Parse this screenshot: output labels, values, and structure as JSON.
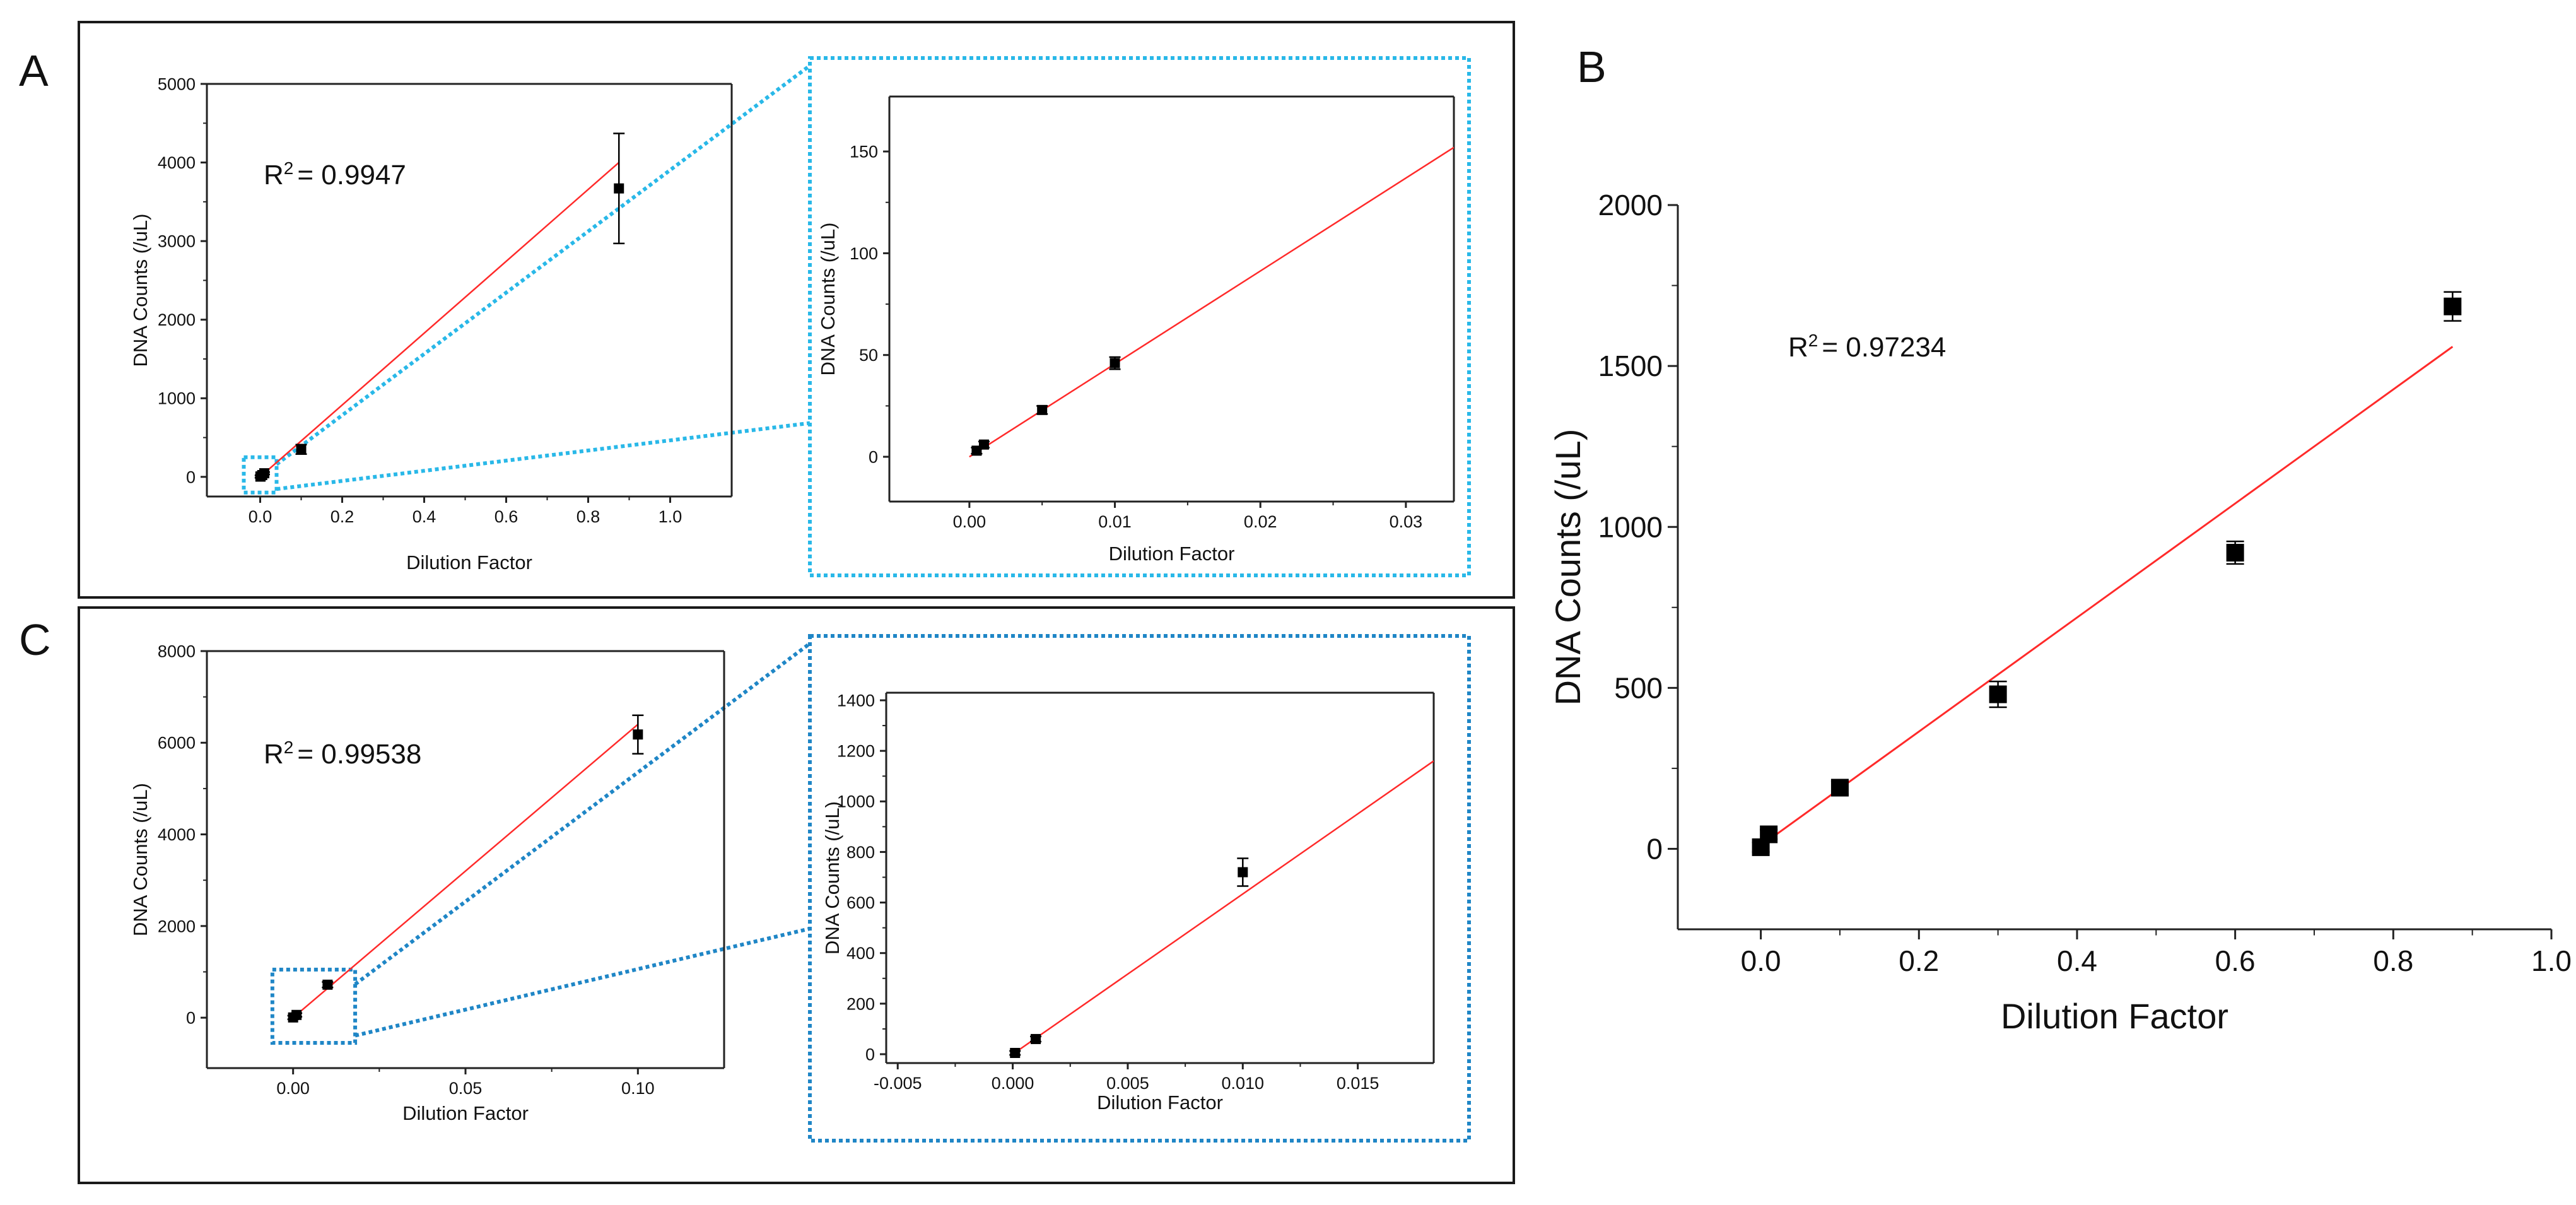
{
  "figure": {
    "panel_labels": {
      "A": "A",
      "B": "B",
      "C": "C"
    }
  },
  "colors": {
    "fit_line": "#ff2a2a",
    "marker": "#000000",
    "zoom_A": "#29b8e8",
    "zoom_C": "#1f86c6",
    "axis": "#222222",
    "frame": "#1a1a1a"
  },
  "chart_data": [
    {
      "id": "A_main",
      "panel": "A",
      "type": "scatter",
      "xlabel": "Dilution Factor",
      "ylabel": "DNA Counts (/uL)",
      "r2_label": "R",
      "r2_exp": "2",
      "r2_value": "= 0.9947",
      "xlim": [
        -0.13,
        1.15
      ],
      "ylim": [
        -250,
        5000
      ],
      "xticks": [
        0.0,
        0.2,
        0.4,
        0.6,
        0.8,
        1.0
      ],
      "xticklabels": [
        "0.0",
        "0.2",
        "0.4",
        "0.6",
        "0.8",
        "1.0"
      ],
      "yticks": [
        0,
        1000,
        2000,
        3000,
        4000,
        5000
      ],
      "yticklabels": [
        "0",
        "1000",
        "2000",
        "3000",
        "4000",
        "5000"
      ],
      "points": [
        {
          "x": 0.0005,
          "y": 3,
          "err": 15
        },
        {
          "x": 0.001,
          "y": 6,
          "err": 15
        },
        {
          "x": 0.005,
          "y": 23,
          "err": 15
        },
        {
          "x": 0.01,
          "y": 46,
          "err": 15
        },
        {
          "x": 0.1,
          "y": 350,
          "err": 60
        },
        {
          "x": 0.875,
          "y": 3670,
          "err": 700
        }
      ],
      "fit": {
        "x": [
          0.0,
          0.875
        ],
        "y": [
          0,
          4000
        ]
      },
      "zoom_box": {
        "x": [
          -0.04,
          0.04
        ],
        "y": [
          -200,
          250
        ]
      }
    },
    {
      "id": "A_inset",
      "panel": "A",
      "type": "scatter",
      "xlabel": "Dilution Factor",
      "ylabel": "DNA Counts (/uL)",
      "xlim": [
        -0.0055,
        0.0333
      ],
      "ylim": [
        -22,
        177
      ],
      "xticks": [
        0.0,
        0.01,
        0.02,
        0.03
      ],
      "xticklabels": [
        "0.00",
        "0.01",
        "0.02",
        "0.03"
      ],
      "yticks": [
        0,
        50,
        100,
        150
      ],
      "yticklabels": [
        "0",
        "50",
        "100",
        "150"
      ],
      "points": [
        {
          "x": 0.0005,
          "y": 3,
          "err": 1.5
        },
        {
          "x": 0.001,
          "y": 6,
          "err": 1.5
        },
        {
          "x": 0.005,
          "y": 23,
          "err": 2
        },
        {
          "x": 0.01,
          "y": 46,
          "err": 3
        }
      ],
      "fit": {
        "x": [
          0.0,
          0.0333
        ],
        "y": [
          0,
          152
        ]
      }
    },
    {
      "id": "B_main",
      "panel": "B",
      "type": "scatter",
      "xlabel": "Dilution Factor",
      "ylabel": "DNA Counts (/uL)",
      "r2_label": "R",
      "r2_exp": "2",
      "r2_value": "= 0.97234",
      "xlim": [
        -0.105,
        1.0
      ],
      "ylim": [
        -250,
        2000
      ],
      "xticks": [
        0.0,
        0.2,
        0.4,
        0.6,
        0.8,
        1.0
      ],
      "xticklabels": [
        "0.0",
        "0.2",
        "0.4",
        "0.6",
        "0.8",
        "1.0"
      ],
      "yticks": [
        0,
        500,
        1000,
        1500,
        2000
      ],
      "yticklabels": [
        "0",
        "500",
        "1000",
        "1500",
        "2000"
      ],
      "points": [
        {
          "x": 0.0,
          "y": 5,
          "err": 15
        },
        {
          "x": 0.01,
          "y": 45,
          "err": 15
        },
        {
          "x": 0.1,
          "y": 190,
          "err": 20
        },
        {
          "x": 0.3,
          "y": 480,
          "err": 40
        },
        {
          "x": 0.6,
          "y": 920,
          "err": 35
        },
        {
          "x": 0.875,
          "y": 1685,
          "err": 45
        }
      ],
      "fit": {
        "x": [
          0.0,
          0.875
        ],
        "y": [
          10,
          1560
        ]
      }
    },
    {
      "id": "C_main",
      "panel": "C",
      "type": "scatter",
      "xlabel": "Dilution Factor",
      "ylabel": "DNA Counts (/uL)",
      "r2_label": "R",
      "r2_exp": "2",
      "r2_value": "= 0.99538",
      "xlim": [
        -0.025,
        0.125
      ],
      "ylim": [
        -1100,
        8000
      ],
      "xticks": [
        0.0,
        0.05,
        0.1
      ],
      "xticklabels": [
        "0.00",
        "0.05",
        "0.10"
      ],
      "yticks": [
        0,
        2000,
        4000,
        6000,
        8000
      ],
      "yticklabels": [
        "0",
        "2000",
        "4000",
        "6000",
        "8000"
      ],
      "points": [
        {
          "x": 0.0,
          "y": 5,
          "err": 40
        },
        {
          "x": 0.001,
          "y": 60,
          "err": 40
        },
        {
          "x": 0.01,
          "y": 720,
          "err": 60
        },
        {
          "x": 0.1,
          "y": 6180,
          "err": 420
        }
      ],
      "fit": {
        "x": [
          0.0,
          0.1
        ],
        "y": [
          0,
          6400
        ]
      },
      "zoom_box": {
        "x": [
          -0.006,
          0.018
        ],
        "y": [
          -550,
          1050
        ]
      }
    },
    {
      "id": "C_inset",
      "panel": "C",
      "type": "scatter",
      "xlabel": "Dilution Factor",
      "ylabel": "DNA Counts (/uL)",
      "xlim": [
        -0.0055,
        0.0183
      ],
      "ylim": [
        -35,
        1430
      ],
      "xticks": [
        -0.005,
        0.0,
        0.005,
        0.01,
        0.015
      ],
      "xticklabels": [
        "-0.005",
        "0.000",
        "0.005",
        "0.010",
        "0.015"
      ],
      "yticks": [
        0,
        200,
        400,
        600,
        800,
        1000,
        1200,
        1400
      ],
      "yticklabels": [
        "0",
        "200",
        "400",
        "600",
        "800",
        "1000",
        "1200",
        "1400"
      ],
      "points": [
        {
          "x": 0.0001,
          "y": 5,
          "err": 8
        },
        {
          "x": 0.001,
          "y": 60,
          "err": 10
        },
        {
          "x": 0.01,
          "y": 720,
          "err": 55
        }
      ],
      "fit": {
        "x": [
          0.0,
          0.0183
        ],
        "y": [
          0,
          1160
        ]
      }
    }
  ]
}
